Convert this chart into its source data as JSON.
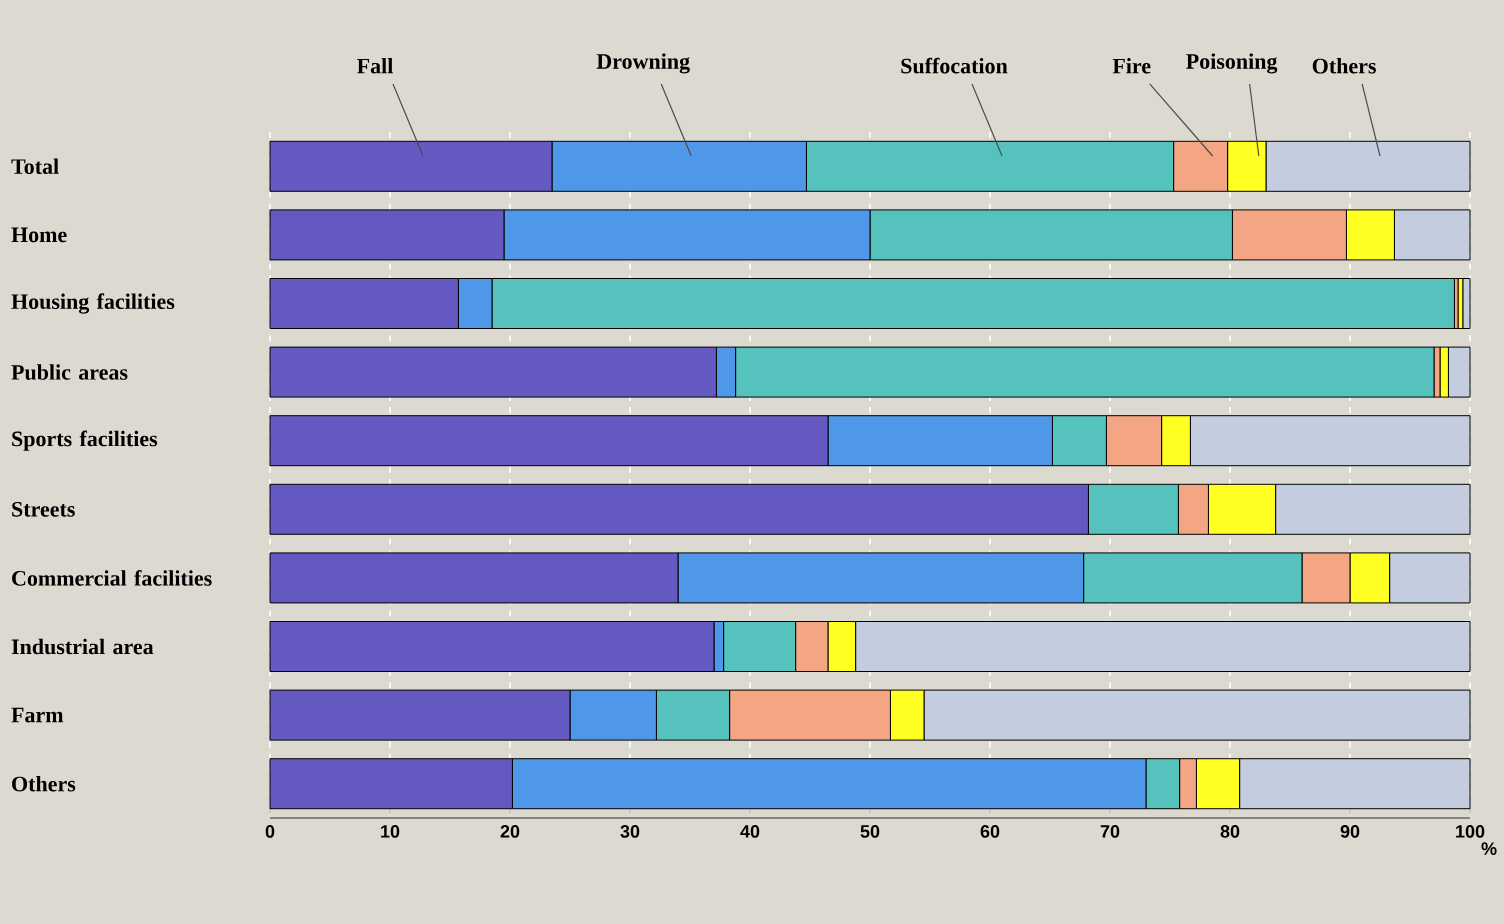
{
  "chart_data": {
    "type": "bar",
    "orientation": "horizontal",
    "stacked": true,
    "legend": "top",
    "grid": "x",
    "xlabel": "%",
    "categories": [
      "Total",
      "Home",
      "Housing facilities",
      "Public areas",
      "Sports facilities",
      "Streets",
      "Commercial facilities",
      "Industrial area",
      "Farm",
      "Others"
    ],
    "xlim": [
      0,
      100
    ],
    "xticks": [
      0,
      10,
      20,
      30,
      40,
      50,
      60,
      70,
      80,
      90,
      100
    ],
    "series": [
      {
        "name": "Fall",
        "color": "#6459c0",
        "values": [
          23.5,
          19.5,
          15.7,
          37.2,
          46.5,
          68.2,
          34,
          37,
          25,
          20.2
        ]
      },
      {
        "name": "Drowning",
        "color": "#4f97e8",
        "values": [
          21.2,
          30.5,
          2.8,
          1.6,
          18.7,
          0,
          33.8,
          0.8,
          7.2,
          52.8
        ]
      },
      {
        "name": "Suffocation",
        "color": "#55c2be",
        "values": [
          30.6,
          30.2,
          80.2,
          58.2,
          4.5,
          7.5,
          18.2,
          6,
          6.1,
          2.8
        ]
      },
      {
        "name": "Fire",
        "color": "#f4a584",
        "values": [
          4.5,
          9.5,
          0.3,
          0.5,
          4.6,
          2.5,
          4,
          2.7,
          13.4,
          1.4
        ]
      },
      {
        "name": "Poisoning",
        "color": "#ffff22",
        "values": [
          3.2,
          4,
          0.4,
          0.7,
          2.4,
          5.6,
          3.3,
          2.3,
          2.8,
          3.6
        ]
      },
      {
        "name": "Others",
        "color": "#c4cce0",
        "values": [
          17,
          6.3,
          0.6,
          1.8,
          23.3,
          16.2,
          6.7,
          51.2,
          45.5,
          19.2
        ]
      }
    ]
  }
}
